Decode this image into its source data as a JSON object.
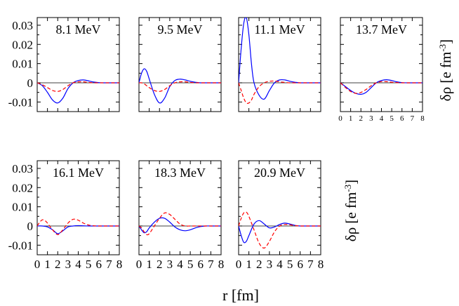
{
  "colors": {
    "solid": "#0000ff",
    "dashed": "#ff0000",
    "axis": "#000000"
  },
  "chart_data": {
    "type": "line",
    "xlabel": "r [fm]",
    "ylabel_main": "δρ [e fm",
    "ylabel_exp": "-3",
    "ylabel_close": "]",
    "xlim": [
      0,
      8
    ],
    "ylim": [
      -0.015,
      0.034
    ],
    "x_ticks": [
      "0",
      "1",
      "2",
      "3",
      "4",
      "5",
      "6",
      "7",
      "8"
    ],
    "y_ticks": [
      {
        "value": -0.01,
        "label": "-0.01"
      },
      {
        "value": 0,
        "label": "0"
      },
      {
        "value": 0.01,
        "label": "0.01"
      },
      {
        "value": 0.02,
        "label": "0.02"
      },
      {
        "value": 0.03,
        "label": "0.03"
      }
    ],
    "panels": [
      {
        "title": "8.1 MeV",
        "series": [
          {
            "name": "solid",
            "style": "solid",
            "x": [
              0,
              0.5,
              1,
              1.5,
              2,
              2.5,
              3,
              3.5,
              4,
              4.5,
              5,
              5.5,
              6,
              6.5,
              7,
              7.5,
              8
            ],
            "y": [
              0,
              -0.0015,
              -0.005,
              -0.009,
              -0.0105,
              -0.008,
              -0.003,
              0,
              0.0012,
              0.0015,
              0.001,
              0.0004,
              0.0001,
              0,
              0,
              0,
              0
            ]
          },
          {
            "name": "dashed",
            "style": "dashed",
            "x": [
              0,
              0.5,
              1,
              1.5,
              2,
              2.5,
              3,
              3.5,
              4,
              4.5,
              5,
              5.5,
              6,
              6.5,
              7,
              7.5,
              8
            ],
            "y": [
              0,
              -0.001,
              -0.0025,
              -0.004,
              -0.0045,
              -0.0035,
              -0.0015,
              0,
              0.0005,
              0.0005,
              0.0002,
              0,
              0,
              0,
              0,
              0,
              0
            ]
          }
        ]
      },
      {
        "title": "9.5 MeV",
        "series": [
          {
            "name": "solid",
            "style": "solid",
            "x": [
              0,
              0.25,
              0.5,
              0.75,
              1,
              1.5,
              2,
              2.5,
              3,
              3.5,
              4,
              4.5,
              5,
              5.5,
              6,
              7,
              8
            ],
            "y": [
              0,
              0.005,
              0.0073,
              0.006,
              0.002,
              -0.006,
              -0.0105,
              -0.008,
              -0.002,
              0.0012,
              0.0019,
              0.0015,
              0.0008,
              0.0003,
              0,
              0,
              0
            ]
          },
          {
            "name": "dashed",
            "style": "dashed",
            "x": [
              0,
              0.25,
              0.5,
              0.75,
              1,
              1.5,
              2,
              2.5,
              3,
              3.5,
              4,
              4.5,
              5,
              5.5,
              6,
              7,
              8
            ],
            "y": [
              0,
              0,
              -0.0005,
              -0.0015,
              -0.0025,
              -0.004,
              -0.0045,
              -0.0035,
              -0.0015,
              0,
              0.0005,
              0.0005,
              0.0002,
              0,
              0,
              0,
              0
            ]
          }
        ]
      },
      {
        "title": "11.1 MeV",
        "series": [
          {
            "name": "solid",
            "style": "solid",
            "x": [
              0,
              0.25,
              0.5,
              0.75,
              1,
              1.25,
              1.5,
              2,
              2.5,
              3,
              3.5,
              4,
              4.5,
              5,
              5.5,
              6,
              7,
              8
            ],
            "y": [
              0,
              0.018,
              0.031,
              0.034,
              0.025,
              0.01,
              0,
              -0.0065,
              -0.0085,
              -0.004,
              0,
              0.0015,
              0.0015,
              0.0008,
              0.0003,
              0,
              0,
              0
            ]
          },
          {
            "name": "dashed",
            "style": "dashed",
            "x": [
              0,
              0.25,
              0.5,
              0.75,
              1,
              1.25,
              1.5,
              2,
              2.5,
              3,
              3.5,
              4,
              4.5,
              5,
              5.5,
              6,
              7,
              8
            ],
            "y": [
              0,
              -0.004,
              -0.008,
              -0.0105,
              -0.0105,
              -0.009,
              -0.006,
              -0.002,
              0,
              0.0008,
              0.0009,
              0.0005,
              0.0002,
              0,
              0,
              0,
              0,
              0
            ]
          }
        ]
      },
      {
        "title": "13.7 MeV",
        "series": [
          {
            "name": "solid",
            "style": "solid",
            "x": [
              0,
              0.5,
              1,
              1.5,
              2,
              2.5,
              3,
              3.5,
              4,
              4.5,
              5,
              5.5,
              6,
              6.5,
              7,
              8
            ],
            "y": [
              0,
              -0.002,
              -0.004,
              -0.0055,
              -0.006,
              -0.005,
              -0.0025,
              0,
              0.0012,
              0.0016,
              0.0012,
              0.0005,
              0.0001,
              0,
              0,
              0
            ]
          },
          {
            "name": "dashed",
            "style": "dashed",
            "x": [
              0,
              0.5,
              1,
              1.5,
              2,
              2.5,
              3,
              3.5,
              4,
              4.5,
              5,
              5.5,
              6,
              6.5,
              7,
              8
            ],
            "y": [
              0,
              -0.0025,
              -0.0045,
              -0.0055,
              -0.005,
              -0.0035,
              -0.0015,
              0,
              0.0006,
              0.0006,
              0.0003,
              0.0001,
              0,
              0,
              0,
              0
            ]
          }
        ]
      },
      {
        "title": "16.1 MeV",
        "series": [
          {
            "name": "solid",
            "style": "solid",
            "x": [
              0,
              0.5,
              1,
              1.5,
              2,
              2.5,
              3,
              3.5,
              4,
              4.5,
              5,
              5.5,
              6,
              7,
              8
            ],
            "y": [
              0,
              0,
              -0.0005,
              -0.002,
              -0.004,
              -0.0025,
              -0.0005,
              0,
              0.0002,
              0.0001,
              0,
              0,
              0,
              0,
              0
            ]
          },
          {
            "name": "dashed",
            "style": "dashed",
            "x": [
              0,
              0.25,
              0.5,
              0.75,
              1,
              1.5,
              2,
              2.5,
              3,
              3.5,
              4,
              4.5,
              5,
              5.5,
              6,
              7,
              8
            ],
            "y": [
              0,
              0.002,
              0.0032,
              0.0028,
              0.0015,
              -0.002,
              -0.0045,
              -0.002,
              0.0015,
              0.0035,
              0.003,
              0.0015,
              0.0005,
              0.0001,
              0,
              0,
              0
            ]
          }
        ]
      },
      {
        "title": "18.3 MeV",
        "series": [
          {
            "name": "solid",
            "style": "solid",
            "x": [
              0,
              0.25,
              0.5,
              0.75,
              1,
              1.5,
              2,
              2.5,
              3,
              3.5,
              4,
              4.5,
              5,
              5.5,
              6,
              6.5,
              7,
              8
            ],
            "y": [
              0,
              -0.002,
              -0.0035,
              -0.003,
              -0.001,
              0.002,
              0.004,
              0.004,
              0.002,
              -0.0005,
              -0.002,
              -0.0025,
              -0.002,
              -0.001,
              -0.0003,
              0,
              0,
              0
            ]
          },
          {
            "name": "dashed",
            "style": "dashed",
            "x": [
              0,
              0.25,
              0.5,
              0.75,
              1,
              1.5,
              2,
              2.5,
              3,
              3.5,
              4,
              4.5,
              5,
              5.5,
              6,
              6.5,
              7,
              8
            ],
            "y": [
              0,
              -0.001,
              -0.003,
              -0.0045,
              -0.004,
              0,
              0.004,
              0.0068,
              0.006,
              0.0035,
              0.001,
              0,
              0,
              0,
              0,
              0,
              0,
              0
            ]
          }
        ]
      },
      {
        "title": "20.9 MeV",
        "series": [
          {
            "name": "solid",
            "style": "solid",
            "x": [
              0,
              0.25,
              0.5,
              0.75,
              1,
              1.5,
              2,
              2.5,
              3,
              3.5,
              4,
              4.5,
              5,
              5.5,
              6,
              7,
              8
            ],
            "y": [
              0,
              -0.005,
              -0.0085,
              -0.008,
              -0.005,
              0.001,
              0.0028,
              0.001,
              -0.001,
              -0.0005,
              0.0008,
              0.0015,
              0.001,
              0.0003,
              0,
              0,
              0
            ]
          },
          {
            "name": "dashed",
            "style": "dashed",
            "x": [
              0,
              0.25,
              0.5,
              0.75,
              1,
              1.5,
              2,
              2.5,
              3,
              3.5,
              4,
              4.5,
              5,
              5.5,
              6,
              7,
              8
            ],
            "y": [
              0,
              0.004,
              0.0068,
              0.0072,
              0.005,
              -0.002,
              -0.009,
              -0.0115,
              -0.008,
              -0.003,
              0,
              0.0008,
              0.0006,
              0.0002,
              0,
              0,
              0
            ]
          }
        ]
      }
    ]
  }
}
